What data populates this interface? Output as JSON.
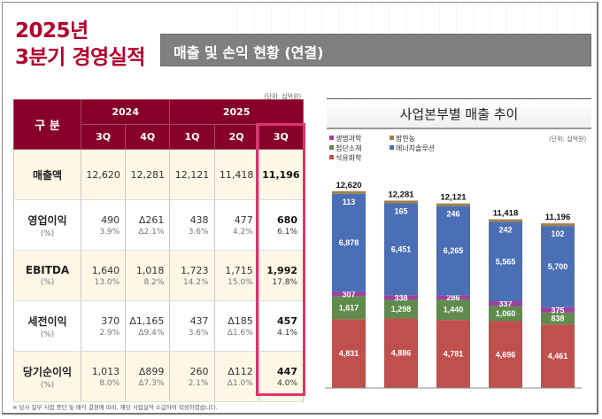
{
  "header": {
    "title_line1": "2025년",
    "title_line2": "3분기 경영실적",
    "section_title": "매출 및 손익 현황 (연결)"
  },
  "table": {
    "unit": "(단위: 십억원)",
    "row_header": "구 분",
    "years": [
      "2024",
      "2025"
    ],
    "quarters": [
      "3Q",
      "4Q",
      "1Q",
      "2Q",
      "3Q"
    ],
    "highlight_column": "2025 3Q",
    "rows": [
      {
        "label": "매출액",
        "sub_label": "",
        "values": [
          "12,620",
          "12,281",
          "12,121",
          "11,418",
          "11,196"
        ],
        "pcts": [
          "",
          "",
          "",
          "",
          ""
        ]
      },
      {
        "label": "영업이익",
        "sub_label": "(%)",
        "values": [
          "490",
          "Δ261",
          "438",
          "477",
          "680"
        ],
        "pcts": [
          "3.9%",
          "Δ2.1%",
          "3.6%",
          "4.2%",
          "6.1%"
        ]
      },
      {
        "label": "EBITDA",
        "sub_label": "(%)",
        "values": [
          "1,640",
          "1,018",
          "1,723",
          "1,715",
          "1,992"
        ],
        "pcts": [
          "13.0%",
          "8.2%",
          "14.2%",
          "15.0%",
          "17.8%"
        ]
      },
      {
        "label": "세전이익",
        "sub_label": "(%)",
        "values": [
          "370",
          "Δ1,165",
          "437",
          "Δ185",
          "457"
        ],
        "pcts": [
          "2.9%",
          "Δ9.4%",
          "3.6%",
          "Δ1.6%",
          "4.1%"
        ]
      },
      {
        "label": "당기순이익",
        "sub_label": "(%)",
        "values": [
          "1,013",
          "Δ899",
          "260",
          "Δ112",
          "447"
        ],
        "pcts": [
          "8.0%",
          "Δ7.3%",
          "2.1%",
          "Δ1.0%",
          "4.0%"
        ]
      }
    ],
    "footnote": "※ 당사 일부 사업 중단 및 매각 결정에 따라, 해당 사업실적 소급하여 작성하였습니다."
  },
  "chart_data": {
    "type": "bar",
    "stacked": true,
    "title": "사업본부별 매출 추이",
    "unit": "(단위: 십억원)",
    "xlabel": "",
    "ylabel": "",
    "legend_position": "top-left",
    "categories": [
      "'24.3Q",
      "'24.4Q",
      "'25.1Q",
      "'25.2Q",
      "'25.3Q"
    ],
    "totals": [
      12620,
      12281,
      12121,
      11418,
      11196
    ],
    "series": [
      {
        "name": "석유화학",
        "color": "#c0504d",
        "values": [
          4831,
          4886,
          4781,
          4696,
          4461
        ]
      },
      {
        "name": "첨단소재",
        "color": "#5f8b4c",
        "values": [
          1617,
          1298,
          1440,
          1060,
          838
        ]
      },
      {
        "name": "생명과학",
        "color": "#a040a0",
        "values": [
          307,
          338,
          286,
          337,
          375
        ]
      },
      {
        "name": "에너지솔루션",
        "color": "#4a6fb5",
        "values": [
          6878,
          6451,
          6265,
          5565,
          5700
        ]
      },
      {
        "name": "팜한농",
        "color": "#a0804a",
        "values": [
          113,
          165,
          246,
          242,
          102
        ]
      }
    ],
    "legend_order": [
      "생명과학",
      "팜한농",
      "첨단소재",
      "에너지솔루션",
      "석유화학"
    ]
  }
}
